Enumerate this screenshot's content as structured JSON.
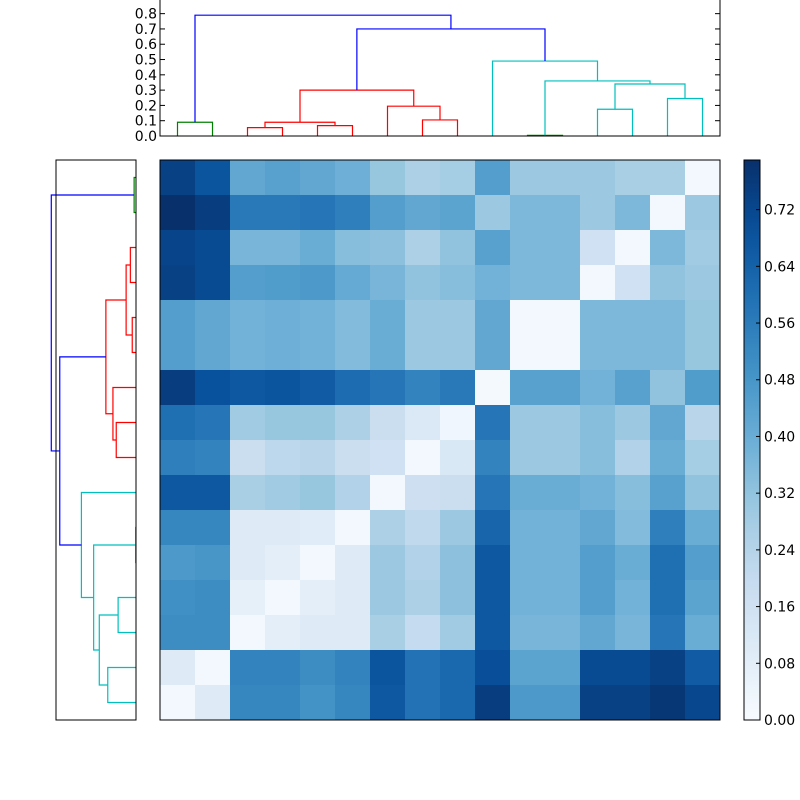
{
  "chart_data": [
    {
      "type": "heatmap",
      "title": "",
      "xlabel": "",
      "ylabel": "",
      "n": 16,
      "matrix": [
        [
          0.74,
          0.68,
          0.42,
          0.44,
          0.42,
          0.39,
          0.31,
          0.26,
          0.28,
          0.45,
          0.3,
          0.3,
          0.3,
          0.27,
          0.27,
          0.02
        ],
        [
          0.79,
          0.75,
          0.57,
          0.57,
          0.58,
          0.55,
          0.45,
          0.42,
          0.43,
          0.3,
          0.36,
          0.36,
          0.3,
          0.36,
          0.02,
          0.3
        ],
        [
          0.73,
          0.71,
          0.37,
          0.37,
          0.4,
          0.34,
          0.33,
          0.26,
          0.32,
          0.44,
          0.36,
          0.36,
          0.16,
          0.02,
          0.36,
          0.29
        ],
        [
          0.74,
          0.71,
          0.45,
          0.46,
          0.47,
          0.41,
          0.37,
          0.32,
          0.34,
          0.38,
          0.36,
          0.36,
          0.02,
          0.16,
          0.32,
          0.3
        ],
        [
          0.45,
          0.42,
          0.38,
          0.39,
          0.38,
          0.35,
          0.4,
          0.3,
          0.3,
          0.42,
          0.02,
          0.02,
          0.36,
          0.36,
          0.36,
          0.31
        ],
        [
          0.45,
          0.42,
          0.38,
          0.39,
          0.38,
          0.35,
          0.4,
          0.3,
          0.3,
          0.42,
          0.02,
          0.02,
          0.36,
          0.36,
          0.36,
          0.31
        ],
        [
          0.75,
          0.69,
          0.67,
          0.68,
          0.66,
          0.61,
          0.58,
          0.54,
          0.57,
          0.01,
          0.44,
          0.44,
          0.38,
          0.44,
          0.32,
          0.46
        ],
        [
          0.6,
          0.58,
          0.29,
          0.31,
          0.31,
          0.26,
          0.18,
          0.11,
          0.03,
          0.58,
          0.3,
          0.3,
          0.34,
          0.3,
          0.42,
          0.23
        ],
        [
          0.55,
          0.54,
          0.18,
          0.22,
          0.23,
          0.18,
          0.16,
          0.02,
          0.12,
          0.54,
          0.3,
          0.3,
          0.34,
          0.25,
          0.4,
          0.28
        ],
        [
          0.67,
          0.67,
          0.27,
          0.29,
          0.31,
          0.25,
          0.02,
          0.17,
          0.18,
          0.58,
          0.4,
          0.4,
          0.38,
          0.34,
          0.44,
          0.32
        ],
        [
          0.53,
          0.53,
          0.1,
          0.1,
          0.09,
          0.02,
          0.26,
          0.21,
          0.3,
          0.63,
          0.38,
          0.38,
          0.42,
          0.35,
          0.55,
          0.4
        ],
        [
          0.47,
          0.48,
          0.1,
          0.08,
          0.02,
          0.1,
          0.3,
          0.25,
          0.33,
          0.67,
          0.38,
          0.38,
          0.45,
          0.4,
          0.6,
          0.45
        ],
        [
          0.5,
          0.51,
          0.07,
          0.02,
          0.08,
          0.1,
          0.3,
          0.26,
          0.33,
          0.67,
          0.38,
          0.38,
          0.45,
          0.38,
          0.6,
          0.43
        ],
        [
          0.51,
          0.51,
          0.02,
          0.08,
          0.1,
          0.1,
          0.27,
          0.2,
          0.29,
          0.67,
          0.37,
          0.37,
          0.42,
          0.37,
          0.58,
          0.4
        ],
        [
          0.1,
          0.02,
          0.54,
          0.54,
          0.51,
          0.54,
          0.68,
          0.59,
          0.62,
          0.7,
          0.43,
          0.43,
          0.71,
          0.71,
          0.74,
          0.66
        ],
        [
          0.02,
          0.1,
          0.53,
          0.53,
          0.49,
          0.53,
          0.67,
          0.59,
          0.62,
          0.75,
          0.47,
          0.47,
          0.74,
          0.74,
          0.77,
          0.72
        ]
      ],
      "colorbar": {
        "colormap": "Blues",
        "vmin": 0.0,
        "vmax": 0.79,
        "tick_values": [
          0.0,
          0.08,
          0.16,
          0.24,
          0.32,
          0.4,
          0.48,
          0.56,
          0.64,
          0.72
        ],
        "tick_labels": [
          "0.00",
          "0.08",
          "0.16",
          "0.24",
          "0.32",
          "0.40",
          "0.48",
          "0.56",
          "0.64",
          "0.72"
        ]
      }
    },
    {
      "type": "dendrogram",
      "orientation": "top",
      "leaf_count": 16,
      "ylim": [
        0,
        0.85
      ],
      "tick_values": [
        0.0,
        0.1,
        0.2,
        0.3,
        0.4,
        0.5,
        0.6,
        0.7,
        0.8
      ],
      "tick_labels": [
        "0.0",
        "0.1",
        "0.2",
        "0.3",
        "0.4",
        "0.5",
        "0.6",
        "0.7",
        "0.8"
      ],
      "colors": {
        "green": "#008000",
        "red": "#ff0000",
        "cyan": "#00bfbf",
        "blue": "#0000ff"
      },
      "links": [
        {
          "left": 0.5,
          "right": 1.5,
          "height": 0.09,
          "left_h": 0,
          "right_h": 0,
          "color": "green"
        },
        {
          "left": 2.5,
          "right": 3.5,
          "height": 0.055,
          "left_h": 0,
          "right_h": 0,
          "color": "red"
        },
        {
          "left": 4.5,
          "right": 5.5,
          "height": 0.068,
          "left_h": 0,
          "right_h": 0,
          "color": "red"
        },
        {
          "left": 3.0,
          "right": 5.0,
          "height": 0.09,
          "left_h": 0.055,
          "right_h": 0.068,
          "color": "red"
        },
        {
          "left": 7.5,
          "right": 8.5,
          "height": 0.105,
          "left_h": 0,
          "right_h": 0,
          "color": "red"
        },
        {
          "left": 6.5,
          "right": 8.0,
          "height": 0.195,
          "left_h": 0,
          "right_h": 0.105,
          "color": "red"
        },
        {
          "left": 4.0,
          "right": 7.25,
          "height": 0.3,
          "left_h": 0.09,
          "right_h": 0.195,
          "color": "red"
        },
        {
          "left": 10.5,
          "right": 11.5,
          "height": 0.004,
          "left_h": 0,
          "right_h": 0,
          "color": "green"
        },
        {
          "left": 12.5,
          "right": 13.5,
          "height": 0.175,
          "left_h": 0,
          "right_h": 0,
          "color": "cyan"
        },
        {
          "left": 14.5,
          "right": 15.5,
          "height": 0.245,
          "left_h": 0,
          "right_h": 0,
          "color": "cyan"
        },
        {
          "left": 13.0,
          "right": 15.0,
          "height": 0.34,
          "left_h": 0.175,
          "right_h": 0.245,
          "color": "cyan"
        },
        {
          "left": 11.0,
          "right": 14.0,
          "height": 0.36,
          "left_h": 0.004,
          "right_h": 0.34,
          "color": "cyan"
        },
        {
          "left": 9.5,
          "right": 12.5,
          "height": 0.49,
          "left_h": 0,
          "right_h": 0.36,
          "color": "cyan"
        },
        {
          "left": 5.625,
          "right": 11.0,
          "height": 0.7,
          "left_h": 0.3,
          "right_h": 0.49,
          "color": "blue"
        },
        {
          "left": 1.0,
          "right": 8.3125,
          "height": 0.79,
          "left_h": 0.09,
          "right_h": 0.7,
          "color": "blue"
        }
      ]
    },
    {
      "type": "dendrogram",
      "orientation": "left",
      "leaf_count": 16,
      "xlim": [
        0,
        0.85
      ],
      "colors": {
        "green": "#008000",
        "red": "#ff0000",
        "cyan": "#00bfbf",
        "blue": "#0000ff"
      },
      "links": [
        {
          "left": 0.5,
          "right": 1.5,
          "height": 0.02,
          "left_h": 0,
          "right_h": 0,
          "color": "green"
        },
        {
          "left": 2.5,
          "right": 3.5,
          "height": 0.06,
          "left_h": 0,
          "right_h": 0,
          "color": "red"
        },
        {
          "left": 4.5,
          "right": 5.5,
          "height": 0.04,
          "left_h": 0,
          "right_h": 0,
          "color": "red"
        },
        {
          "left": 3.0,
          "right": 5.0,
          "height": 0.105,
          "left_h": 0.06,
          "right_h": 0.04,
          "color": "red"
        },
        {
          "left": 7.5,
          "right": 8.5,
          "height": 0.21,
          "left_h": 0,
          "right_h": 0,
          "color": "red"
        },
        {
          "left": 6.5,
          "right": 8.0,
          "height": 0.245,
          "left_h": 0,
          "right_h": 0.21,
          "color": "red"
        },
        {
          "left": 4.0,
          "right": 7.25,
          "height": 0.32,
          "left_h": 0.105,
          "right_h": 0.245,
          "color": "red"
        },
        {
          "left": 10.5,
          "right": 11.5,
          "height": 0.003,
          "left_h": 0,
          "right_h": 0,
          "color": "cyan"
        },
        {
          "left": 12.5,
          "right": 13.5,
          "height": 0.19,
          "left_h": 0,
          "right_h": 0,
          "color": "cyan"
        },
        {
          "left": 14.5,
          "right": 15.5,
          "height": 0.3,
          "left_h": 0,
          "right_h": 0,
          "color": "cyan"
        },
        {
          "left": 13.0,
          "right": 15.0,
          "height": 0.39,
          "left_h": 0.19,
          "right_h": 0.3,
          "color": "cyan"
        },
        {
          "left": 11.0,
          "right": 14.0,
          "height": 0.45,
          "left_h": 0.003,
          "right_h": 0.39,
          "color": "cyan"
        },
        {
          "left": 9.5,
          "right": 12.5,
          "height": 0.58,
          "left_h": 0,
          "right_h": 0.45,
          "color": "cyan"
        },
        {
          "left": 5.625,
          "right": 11.0,
          "height": 0.81,
          "left_h": 0.32,
          "right_h": 0.58,
          "color": "blue"
        },
        {
          "left": 1.0,
          "right": 8.3125,
          "height": 0.9,
          "left_h": 0.02,
          "right_h": 0.81,
          "color": "blue"
        }
      ]
    }
  ]
}
